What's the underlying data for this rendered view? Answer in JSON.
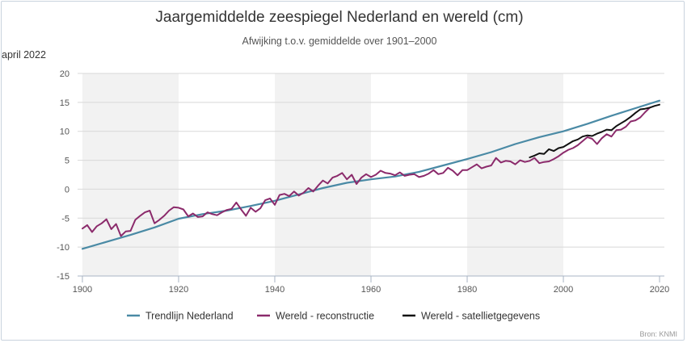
{
  "chart_data": {
    "type": "line",
    "title": "Jaargemiddelde zeespiegel Nederland en wereld (cm)",
    "subtitle": "Afwijking t.o.v. gemiddelde over 1901–2000",
    "note": "april 2022",
    "credit": "Bron: KNMI",
    "xlim": [
      1899,
      2021
    ],
    "ylim": [
      -15,
      20
    ],
    "x_ticks": [
      1900,
      1920,
      1940,
      1960,
      1980,
      2000,
      2020
    ],
    "y_ticks": [
      -15,
      -10,
      -5,
      0,
      5,
      10,
      15,
      20
    ],
    "shaded_bands": [
      [
        1900,
        1920
      ],
      [
        1940,
        1960
      ],
      [
        1980,
        2000
      ]
    ],
    "legend_position": "bottom",
    "series": [
      {
        "name": "Trendlijn Nederland",
        "color": "#4a8aa5",
        "x": [
          1900,
          1905,
          1910,
          1915,
          1920,
          1925,
          1930,
          1935,
          1940,
          1945,
          1950,
          1955,
          1960,
          1965,
          1970,
          1975,
          1980,
          1985,
          1990,
          1995,
          2000,
          2005,
          2010,
          2015,
          2020
        ],
        "y": [
          -10.3,
          -9.1,
          -7.9,
          -6.6,
          -5.1,
          -4.3,
          -3.7,
          -2.9,
          -2.0,
          -0.9,
          0.2,
          1.1,
          1.7,
          2.2,
          3.0,
          4.1,
          5.2,
          6.4,
          7.8,
          9.0,
          10.0,
          11.3,
          12.7,
          14.0,
          15.3
        ]
      },
      {
        "name": "Wereld - reconstructie",
        "color": "#8b2a6b",
        "x": [
          1900,
          1901,
          1902,
          1903,
          1904,
          1905,
          1906,
          1907,
          1908,
          1909,
          1910,
          1911,
          1912,
          1913,
          1914,
          1915,
          1916,
          1917,
          1918,
          1919,
          1920,
          1921,
          1922,
          1923,
          1924,
          1925,
          1926,
          1927,
          1928,
          1929,
          1930,
          1931,
          1932,
          1933,
          1934,
          1935,
          1936,
          1937,
          1938,
          1939,
          1940,
          1941,
          1942,
          1943,
          1944,
          1945,
          1946,
          1947,
          1948,
          1949,
          1950,
          1951,
          1952,
          1953,
          1954,
          1955,
          1956,
          1957,
          1958,
          1959,
          1960,
          1961,
          1962,
          1963,
          1964,
          1965,
          1966,
          1967,
          1968,
          1969,
          1970,
          1971,
          1972,
          1973,
          1974,
          1975,
          1976,
          1977,
          1978,
          1979,
          1980,
          1981,
          1982,
          1983,
          1984,
          1985,
          1986,
          1987,
          1988,
          1989,
          1990,
          1991,
          1992,
          1993,
          1994,
          1995,
          1996,
          1997,
          1998,
          1999,
          2000,
          2001,
          2002,
          2003,
          2004,
          2005,
          2006,
          2007,
          2008,
          2009,
          2010,
          2011,
          2012,
          2013,
          2014,
          2015,
          2016,
          2017,
          2018
        ],
        "y": [
          -6.8,
          -6.2,
          -7.4,
          -6.4,
          -5.9,
          -5.2,
          -6.9,
          -6.0,
          -8.1,
          -7.3,
          -7.2,
          -5.3,
          -4.6,
          -4.0,
          -3.7,
          -5.9,
          -5.3,
          -4.6,
          -3.7,
          -3.1,
          -3.2,
          -3.5,
          -4.7,
          -4.2,
          -4.8,
          -4.7,
          -4.0,
          -4.3,
          -4.5,
          -4.0,
          -3.6,
          -3.4,
          -2.3,
          -3.5,
          -4.6,
          -3.2,
          -3.9,
          -3.3,
          -1.9,
          -1.6,
          -2.7,
          -1.0,
          -0.8,
          -1.2,
          -0.4,
          -1.1,
          -0.6,
          0.2,
          -0.4,
          0.6,
          1.5,
          1.0,
          2.0,
          2.3,
          2.8,
          1.7,
          2.5,
          0.9,
          2.0,
          2.6,
          2.1,
          2.5,
          3.2,
          2.8,
          2.7,
          2.4,
          2.9,
          2.3,
          2.5,
          2.6,
          2.1,
          2.3,
          2.7,
          3.3,
          2.6,
          2.8,
          3.7,
          3.2,
          2.4,
          3.3,
          3.3,
          3.8,
          4.3,
          3.6,
          3.9,
          4.1,
          5.4,
          4.6,
          4.9,
          4.8,
          4.3,
          5.0,
          4.7,
          4.9,
          5.4,
          4.5,
          4.7,
          4.8,
          5.2,
          5.7,
          6.3,
          6.8,
          7.1,
          7.6,
          8.3,
          9.0,
          8.7,
          7.8,
          8.8,
          9.5,
          9.1,
          10.2,
          10.3,
          10.8,
          11.7,
          11.9,
          12.4,
          13.3,
          14.1
        ]
      },
      {
        "name": "Wereld - satellietgegevens",
        "color": "#111111",
        "x": [
          1993,
          1994,
          1995,
          1996,
          1997,
          1998,
          1999,
          2000,
          2001,
          2002,
          2003,
          2004,
          2005,
          2006,
          2007,
          2008,
          2009,
          2010,
          2011,
          2012,
          2013,
          2014,
          2015,
          2016,
          2017,
          2018,
          2019,
          2020
        ],
        "y": [
          5.5,
          5.8,
          6.2,
          6.1,
          6.9,
          6.6,
          7.1,
          7.3,
          7.8,
          8.3,
          8.6,
          9.1,
          9.3,
          9.2,
          9.6,
          9.9,
          10.3,
          10.2,
          10.9,
          11.4,
          11.9,
          12.5,
          13.2,
          13.8,
          13.9,
          14.1,
          14.4,
          14.6
        ]
      }
    ]
  }
}
